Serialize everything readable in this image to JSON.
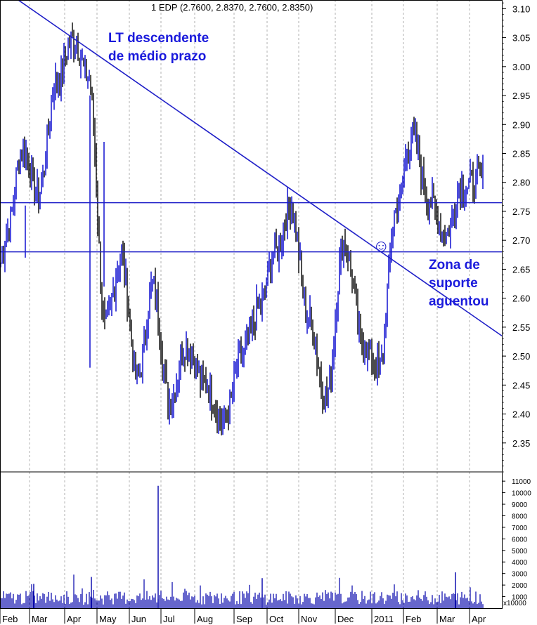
{
  "chart_data": {
    "type": "candlestick",
    "title": "1 EDP (2.7600, 2.8370, 2.7600, 2.8350)",
    "price_axis": {
      "ylim": [
        2.3,
        3.115
      ],
      "ticks": [
        "3.10",
        "3.05",
        "3.00",
        "2.95",
        "2.90",
        "2.85",
        "2.80",
        "2.75",
        "2.70",
        "2.65",
        "2.60",
        "2.55",
        "2.50",
        "2.45",
        "2.40",
        "2.35"
      ]
    },
    "volume_axis": {
      "ylim": [
        0,
        11800
      ],
      "ticks": [
        "11000",
        "10000",
        "9000",
        "8000",
        "7000",
        "6000",
        "5000",
        "4000",
        "3000",
        "2000",
        "1000"
      ],
      "multiplier_label": "x10000"
    },
    "months": [
      "Feb",
      "Mar",
      "Apr",
      "May",
      "Jun",
      "Jul",
      "Aug",
      "Sep",
      "Oct",
      "Nov",
      "Dec",
      "2011",
      "Feb",
      "Mar",
      "Apr"
    ],
    "key_prices": [
      {
        "month": "Feb",
        "value": 2.72
      },
      {
        "month": "Feb",
        "value": 2.86
      },
      {
        "month": "Mar",
        "value": 2.78
      },
      {
        "month": "Mar",
        "value": 2.97
      },
      {
        "month": "Apr",
        "value": 3.05
      },
      {
        "month": "Apr",
        "value": 2.98
      },
      {
        "month": "May",
        "value": 2.55
      },
      {
        "month": "May",
        "value": 2.67
      },
      {
        "month": "Jun",
        "value": 2.46
      },
      {
        "month": "Jun",
        "value": 2.62
      },
      {
        "month": "Jul",
        "value": 2.42
      },
      {
        "month": "Jul",
        "value": 2.52
      },
      {
        "month": "Aug",
        "value": 2.45
      },
      {
        "month": "Aug",
        "value": 2.39
      },
      {
        "month": "Sep",
        "value": 2.5
      },
      {
        "month": "Sep",
        "value": 2.58
      },
      {
        "month": "Oct",
        "value": 2.68
      },
      {
        "month": "Oct",
        "value": 2.76
      },
      {
        "month": "Nov",
        "value": 2.57
      },
      {
        "month": "Nov",
        "value": 2.43
      },
      {
        "month": "Dec",
        "value": 2.7
      },
      {
        "month": "Dec",
        "value": 2.52
      },
      {
        "month": "2011",
        "value": 2.48
      },
      {
        "month": "2011",
        "value": 2.75
      },
      {
        "month": "Feb",
        "value": 2.88
      },
      {
        "month": "Feb",
        "value": 2.77
      },
      {
        "month": "Mar",
        "value": 2.71
      },
      {
        "month": "Mar",
        "value": 2.79
      },
      {
        "month": "Apr",
        "value": 2.81
      }
    ],
    "horizontal_lines": [
      2.765,
      2.68
    ],
    "trendline": {
      "from": [
        "Feb",
        3.12
      ],
      "to": [
        "Apr",
        2.535
      ]
    },
    "colors": {
      "up": "#0000cc",
      "down": "#000000",
      "lines": "#2020c8",
      "annotation": "#1a1adc",
      "volume": "#0000aa"
    }
  },
  "annotations": {
    "trend_line_1": "LT descendente",
    "trend_line_2": "de médio prazo",
    "support_1": "Zona de",
    "support_2": "suporte",
    "support_3": "aguentou",
    "smiley": "☺"
  }
}
